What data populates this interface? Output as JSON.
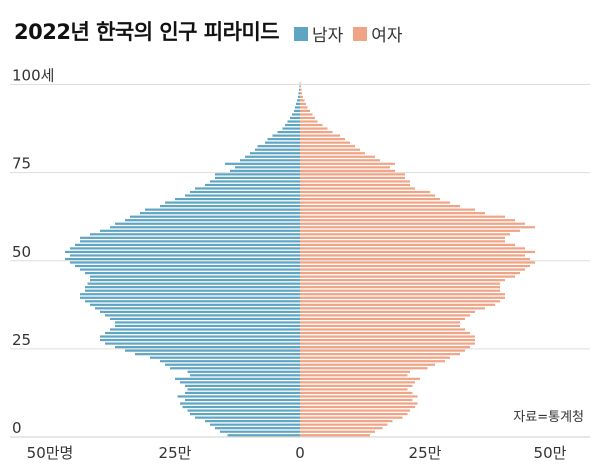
{
  "title": "2022년 한국의 인구 피라미드",
  "legend": {
    "male": {
      "label": "남자",
      "color": "#5ea4c3"
    },
    "female": {
      "label": "여자",
      "color": "#f0a385"
    }
  },
  "source": "자료=통계청",
  "chart_data": {
    "type": "bar",
    "orientation": "horizontal-pyramid",
    "title": "2022년 한국의 인구 피라미드",
    "y_label_unit": "세",
    "y_ticks": [
      {
        "age": 0,
        "label": "0"
      },
      {
        "age": 25,
        "label": "25"
      },
      {
        "age": 50,
        "label": "50"
      },
      {
        "age": 75,
        "label": "75"
      },
      {
        "age": 100,
        "label": "100세"
      }
    ],
    "x_ticks_left": [
      {
        "value": 50,
        "label": "50만명"
      },
      {
        "value": 25,
        "label": "25만"
      }
    ],
    "x_tick_center": {
      "value": 0,
      "label": "0"
    },
    "x_ticks_right": [
      {
        "value": 25,
        "label": "25만"
      },
      {
        "value": 50,
        "label": "50만"
      }
    ],
    "unit": "만명",
    "xlim": [
      0,
      50
    ],
    "ylim": [
      0,
      100
    ],
    "ages": [
      0,
      1,
      2,
      3,
      4,
      5,
      6,
      7,
      8,
      9,
      10,
      11,
      12,
      13,
      14,
      15,
      16,
      17,
      18,
      19,
      20,
      21,
      22,
      23,
      24,
      25,
      26,
      27,
      28,
      29,
      30,
      31,
      32,
      33,
      34,
      35,
      36,
      37,
      38,
      39,
      40,
      41,
      42,
      43,
      44,
      45,
      46,
      47,
      48,
      49,
      50,
      51,
      52,
      53,
      54,
      55,
      56,
      57,
      58,
      59,
      60,
      61,
      62,
      63,
      64,
      65,
      66,
      67,
      68,
      69,
      70,
      71,
      72,
      73,
      74,
      75,
      76,
      77,
      78,
      79,
      80,
      81,
      82,
      83,
      84,
      85,
      86,
      87,
      88,
      89,
      90,
      91,
      92,
      93,
      94,
      95,
      96,
      97,
      98,
      99,
      100
    ],
    "series": [
      {
        "name": "남자",
        "values": [
          14.5,
          16,
          17,
          18,
          19,
          21,
          22,
          22.5,
          23.5,
          24,
          23,
          24.5,
          23,
          22.5,
          23,
          24,
          25,
          22,
          22.5,
          26,
          27,
          28,
          30,
          33,
          35,
          37,
          39,
          40,
          40,
          39,
          38,
          37,
          37,
          38,
          39,
          40,
          41,
          42,
          43,
          44,
          44,
          43,
          43,
          42.5,
          42,
          42,
          43,
          44,
          45,
          46,
          47,
          46,
          47,
          46,
          45,
          44,
          44,
          42,
          40,
          38,
          37,
          35,
          34,
          32,
          31,
          28,
          27,
          25,
          23,
          22,
          21,
          19,
          18,
          17,
          17,
          14,
          13,
          15,
          12,
          11,
          10,
          9,
          8.5,
          7,
          6.5,
          5.5,
          4.5,
          3.5,
          3,
          2.5,
          2,
          1.6,
          1.2,
          1,
          0.8,
          0.6,
          0.4,
          0.3,
          0.2,
          0.1,
          0.05
        ]
      },
      {
        "name": "여자",
        "values": [
          14,
          15,
          16.5,
          17.5,
          18.5,
          20.5,
          21.5,
          22,
          23,
          23.5,
          22.5,
          23.5,
          22.5,
          21.5,
          22.5,
          23,
          24,
          21.5,
          22,
          25.5,
          27,
          29,
          30,
          32,
          33,
          34,
          35,
          35,
          35,
          34,
          33,
          32,
          32,
          33,
          34,
          35,
          37,
          39,
          40,
          41,
          41,
          40,
          40,
          40,
          41,
          43,
          44,
          45,
          46,
          47,
          46,
          45,
          47,
          45,
          43,
          41,
          41,
          42,
          44,
          47,
          45,
          43,
          41,
          37,
          35,
          32,
          30,
          28,
          27,
          26,
          23,
          22,
          22,
          21,
          21,
          19,
          18,
          19,
          16,
          15,
          13,
          12,
          11,
          10,
          9,
          8,
          6.5,
          5.5,
          4.5,
          3.5,
          3,
          2.5,
          2,
          1.5,
          1.2,
          0.9,
          0.6,
          0.4,
          0.3,
          0.2,
          0.1
        ]
      }
    ],
    "grid": "horizontal at y ticks"
  }
}
